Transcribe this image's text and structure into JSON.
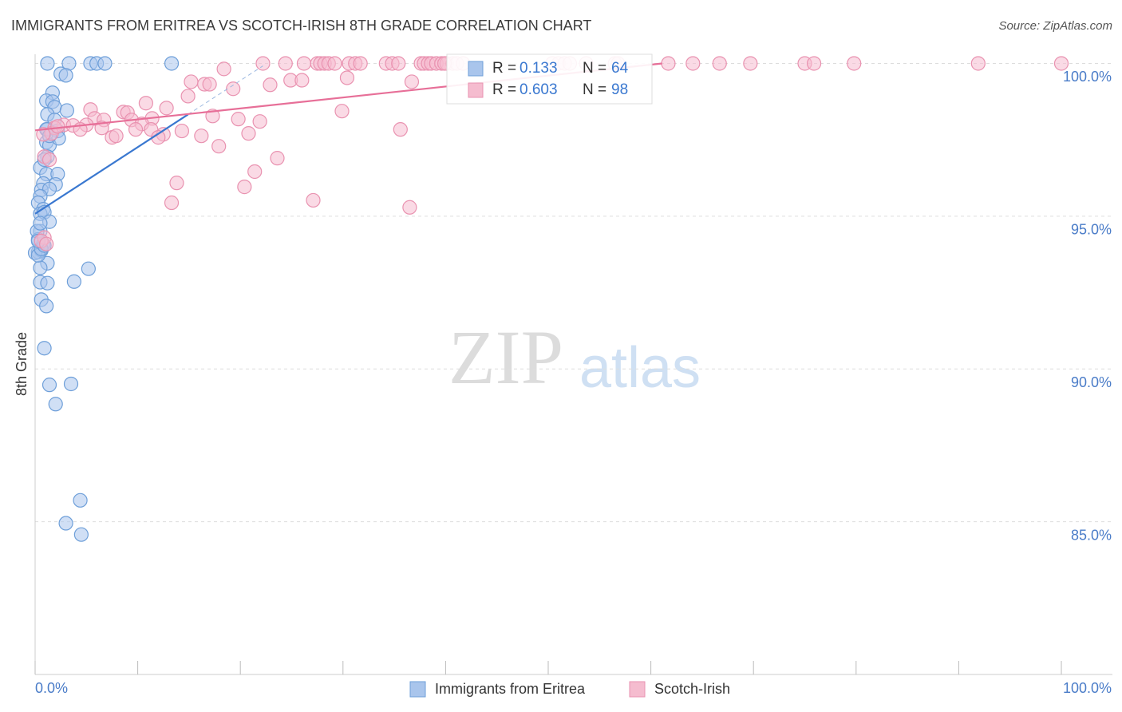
{
  "chart_data": {
    "type": "scatter",
    "title": "IMMIGRANTS FROM ERITREA VS SCOTCH-IRISH 8TH GRADE CORRELATION CHART",
    "source": "Source: ZipAtlas.com",
    "y_label": "8th Grade",
    "watermark": {
      "zip": "ZIP",
      "atlas": "atlas"
    },
    "xlim": [
      0,
      100
    ],
    "ylim": [
      80,
      100.3
    ],
    "xticks": [
      {
        "value": 0,
        "label": "0.0%"
      },
      {
        "value": 100,
        "label": "100.0%"
      }
    ],
    "yticks": [
      {
        "value": 100,
        "label": "100.0%"
      },
      {
        "value": 95,
        "label": "95.0%"
      },
      {
        "value": 90,
        "label": "90.0%"
      },
      {
        "value": 85,
        "label": "85.0%"
      }
    ],
    "grid": true,
    "stat_labels": {
      "r": "R =",
      "n": "N ="
    },
    "series": [
      {
        "name": "Immigrants from Eritrea",
        "color": "#a9c5ec",
        "edge": "#6e9fd9",
        "line_color": "#3a78d0",
        "r": 0.133,
        "n": 64,
        "trend": {
          "x": [
            0,
            14.9
          ],
          "y": [
            95.08,
            98.33
          ]
        },
        "trend_extension": {
          "x": [
            14.9,
            22.2
          ],
          "y": [
            98.33,
            99.92
          ]
        },
        "x": [
          1.2,
          3.3,
          5.4,
          6.0,
          6.8,
          13.3,
          2.5,
          3.0,
          1.7,
          1.1,
          1.7,
          1.9,
          3.1,
          1.2,
          1.9,
          1.2,
          2.2,
          1.1,
          1.4,
          2.3,
          1.2,
          0.5,
          1.1,
          2.2,
          0.8,
          2.0,
          0.6,
          1.4,
          0.5,
          0.3,
          0.8,
          0.5,
          0.9,
          1.4,
          0.5,
          0.3,
          0.8,
          0.3,
          0.6,
          0.0,
          1.2,
          0.5,
          0.5,
          1.2,
          3.8,
          5.2,
          0.6,
          1.1,
          0.9,
          1.4,
          3.5,
          2.0,
          4.4,
          3.0,
          4.5,
          0.3,
          0.2,
          0.6,
          0.9,
          1.1,
          1.4,
          0.5,
          0.9,
          0.3
        ],
        "y": [
          100,
          100,
          100,
          100,
          100,
          100,
          99.66,
          99.61,
          99.04,
          98.78,
          98.75,
          98.57,
          98.46,
          98.33,
          98.15,
          97.84,
          97.79,
          97.42,
          97.32,
          97.55,
          96.95,
          96.59,
          96.38,
          96.38,
          96.07,
          96.04,
          95.86,
          95.89,
          95.65,
          95.44,
          95.23,
          95.08,
          95.13,
          94.82,
          94.51,
          94.24,
          94.09,
          93.83,
          93.88,
          93.8,
          93.46,
          93.31,
          92.84,
          92.81,
          92.86,
          93.28,
          92.27,
          92.06,
          90.68,
          89.48,
          89.51,
          88.85,
          85.7,
          84.95,
          84.58,
          93.72,
          94.51,
          93.93,
          94.04,
          97.84,
          97.63,
          94.77,
          96.85,
          94.19
        ]
      },
      {
        "name": "Scotch-Irish",
        "color": "#f5bccf",
        "edge": "#e992b0",
        "line_color": "#e76f98",
        "r": 0.603,
        "n": 98,
        "trend": {
          "x": [
            0,
            61.1
          ],
          "y": [
            97.81,
            100
          ]
        },
        "x": [
          22.2,
          24.4,
          26.2,
          27.5,
          27.8,
          28.2,
          28.6,
          29.2,
          30.6,
          31.2,
          31.7,
          34.2,
          34.8,
          35.4,
          37.6,
          37.9,
          38.3,
          38.6,
          39.1,
          39.6,
          40.1,
          40.7,
          41.1,
          41.7,
          50.4,
          51.0,
          51.6,
          52.1,
          53.7,
          56.5,
          56.8,
          61.7,
          64.1,
          66.7,
          69.7,
          75.0,
          75.9,
          79.8,
          91.9,
          100,
          18.4,
          15.2,
          16.5,
          17.0,
          19.3,
          22.9,
          24.9,
          26.0,
          30.4,
          36.7,
          14.9,
          10.8,
          12.8,
          5.4,
          8.6,
          9.0,
          5.8,
          6.7,
          9.4,
          11.4,
          17.3,
          19.8,
          21.9,
          10.4,
          2.8,
          3.7,
          5.0,
          1.9,
          4.4,
          1.6,
          6.5,
          9.8,
          11.3,
          12.5,
          14.3,
          16.2,
          20.8,
          7.5,
          7.9,
          12.0,
          35.6,
          29.9,
          17.9,
          23.6,
          0.9,
          1.4,
          21.4,
          13.8,
          20.4,
          13.3,
          27.1,
          36.5,
          0.9,
          0.6,
          1.1,
          0.8,
          2.2,
          39.9
        ],
        "y": [
          100,
          100,
          100,
          100,
          100,
          100,
          100,
          100,
          100,
          100,
          100,
          100,
          100,
          100,
          100,
          100,
          100,
          100,
          100,
          100,
          100,
          100,
          100,
          100,
          100,
          100,
          100,
          100,
          100,
          100,
          100,
          100,
          100,
          100,
          100,
          100,
          100,
          100,
          100,
          100,
          99.82,
          99.4,
          99.32,
          99.32,
          99.17,
          99.3,
          99.45,
          99.45,
          99.53,
          99.4,
          98.93,
          98.7,
          98.54,
          98.49,
          98.41,
          98.39,
          98.2,
          98.15,
          98.15,
          98.2,
          98.28,
          98.18,
          98.1,
          98.02,
          97.99,
          97.97,
          97.99,
          97.89,
          97.84,
          97.71,
          97.89,
          97.84,
          97.84,
          97.68,
          97.79,
          97.63,
          97.71,
          97.58,
          97.63,
          97.58,
          97.84,
          98.44,
          97.29,
          96.9,
          96.95,
          96.85,
          96.46,
          96.09,
          95.96,
          95.44,
          95.52,
          95.29,
          94.3,
          94.19,
          94.09,
          97.68,
          97.94,
          100
        ]
      }
    ]
  }
}
